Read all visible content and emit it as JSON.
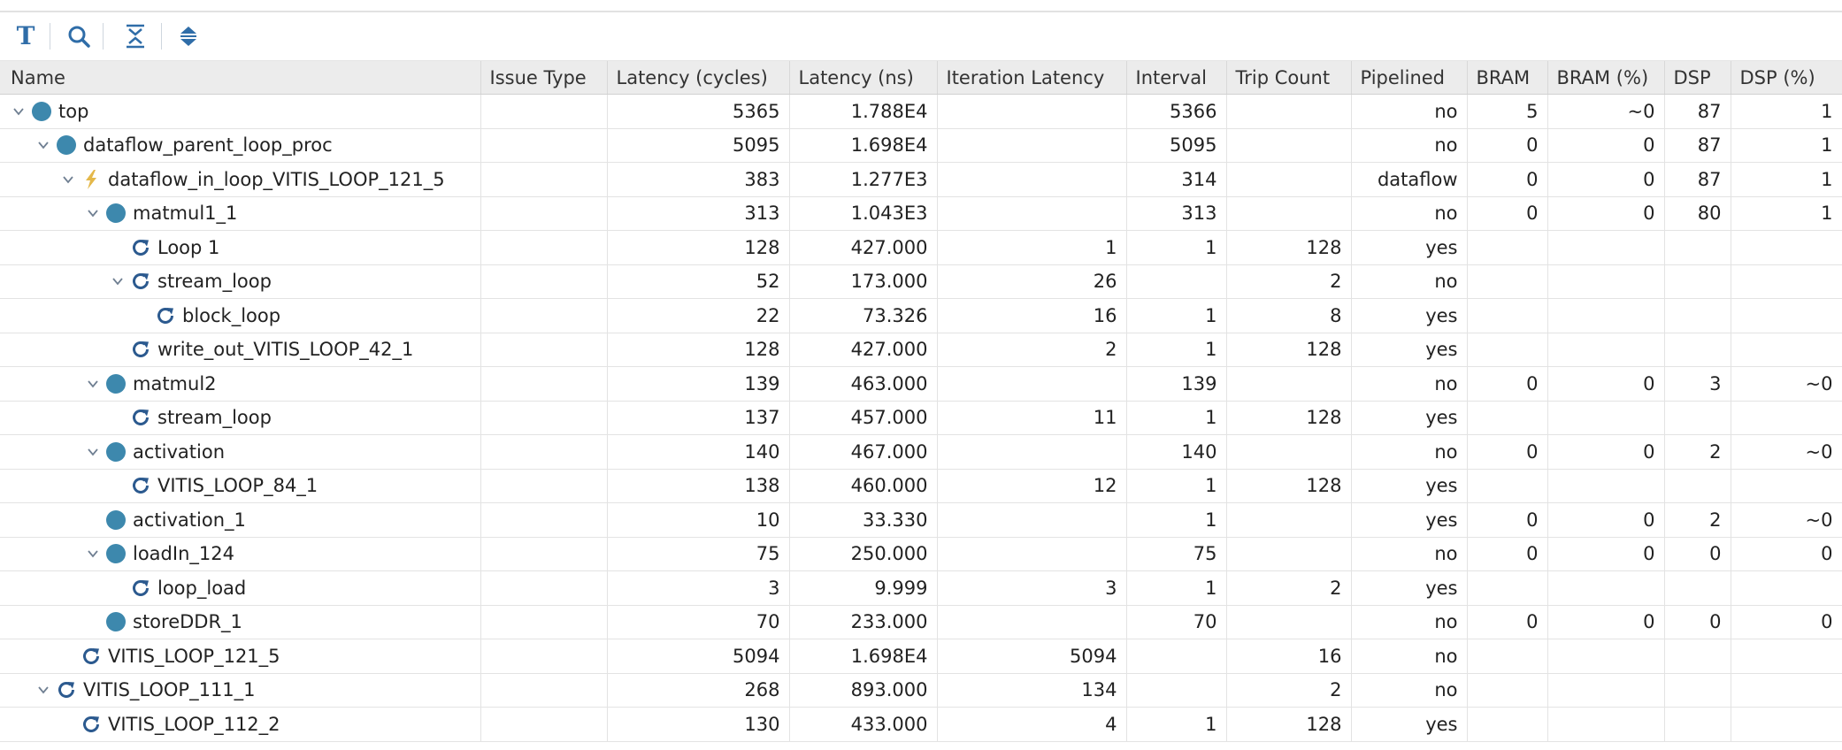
{
  "toolbar": {
    "buttons": [
      {
        "name": "text-format-button",
        "icon": "text-format-icon",
        "glyph": "T"
      },
      {
        "name": "search-button",
        "icon": "search-icon"
      },
      {
        "name": "collapse-all-button",
        "icon": "collapse-all-icon"
      },
      {
        "name": "expand-all-button",
        "icon": "expand-all-icon"
      }
    ]
  },
  "table": {
    "columns": [
      "Name",
      "Issue Type",
      "Latency (cycles)",
      "Latency (ns)",
      "Iteration Latency",
      "Interval",
      "Trip Count",
      "Pipelined",
      "BRAM",
      "BRAM (%)",
      "DSP",
      "DSP (%)"
    ],
    "rows": [
      {
        "name": "top",
        "level": 0,
        "icon": "function",
        "expanded": true,
        "issue": "",
        "lat_cycles": "5365",
        "lat_ns": "1.788E4",
        "iter_lat": "",
        "interval": "5366",
        "trip": "",
        "pipelined": "no",
        "bram": "5",
        "bram_pct": "~0",
        "dsp": "87",
        "dsp_pct": "1"
      },
      {
        "name": "dataflow_parent_loop_proc",
        "level": 1,
        "icon": "function",
        "expanded": true,
        "issue": "",
        "lat_cycles": "5095",
        "lat_ns": "1.698E4",
        "iter_lat": "",
        "interval": "5095",
        "trip": "",
        "pipelined": "no",
        "bram": "0",
        "bram_pct": "0",
        "dsp": "87",
        "dsp_pct": "1"
      },
      {
        "name": "dataflow_in_loop_VITIS_LOOP_121_5",
        "level": 2,
        "icon": "dataflow",
        "expanded": true,
        "issue": "",
        "lat_cycles": "383",
        "lat_ns": "1.277E3",
        "iter_lat": "",
        "interval": "314",
        "trip": "",
        "pipelined": "dataflow",
        "bram": "0",
        "bram_pct": "0",
        "dsp": "87",
        "dsp_pct": "1"
      },
      {
        "name": "matmul1_1",
        "level": 3,
        "icon": "function",
        "expanded": true,
        "issue": "",
        "lat_cycles": "313",
        "lat_ns": "1.043E3",
        "iter_lat": "",
        "interval": "313",
        "trip": "",
        "pipelined": "no",
        "bram": "0",
        "bram_pct": "0",
        "dsp": "80",
        "dsp_pct": "1"
      },
      {
        "name": "Loop 1",
        "level": 4,
        "icon": "loop",
        "expanded": null,
        "issue": "",
        "lat_cycles": "128",
        "lat_ns": "427.000",
        "iter_lat": "1",
        "interval": "1",
        "trip": "128",
        "pipelined": "yes",
        "bram": "",
        "bram_pct": "",
        "dsp": "",
        "dsp_pct": ""
      },
      {
        "name": "stream_loop",
        "level": 4,
        "icon": "loop",
        "expanded": true,
        "issue": "",
        "lat_cycles": "52",
        "lat_ns": "173.000",
        "iter_lat": "26",
        "interval": "",
        "trip": "2",
        "pipelined": "no",
        "bram": "",
        "bram_pct": "",
        "dsp": "",
        "dsp_pct": ""
      },
      {
        "name": "block_loop",
        "level": 5,
        "icon": "loop",
        "expanded": null,
        "issue": "",
        "lat_cycles": "22",
        "lat_ns": "73.326",
        "iter_lat": "16",
        "interval": "1",
        "trip": "8",
        "pipelined": "yes",
        "bram": "",
        "bram_pct": "",
        "dsp": "",
        "dsp_pct": ""
      },
      {
        "name": "write_out_VITIS_LOOP_42_1",
        "level": 4,
        "icon": "loop",
        "expanded": null,
        "issue": "",
        "lat_cycles": "128",
        "lat_ns": "427.000",
        "iter_lat": "2",
        "interval": "1",
        "trip": "128",
        "pipelined": "yes",
        "bram": "",
        "bram_pct": "",
        "dsp": "",
        "dsp_pct": ""
      },
      {
        "name": "matmul2",
        "level": 3,
        "icon": "function",
        "expanded": true,
        "issue": "",
        "lat_cycles": "139",
        "lat_ns": "463.000",
        "iter_lat": "",
        "interval": "139",
        "trip": "",
        "pipelined": "no",
        "bram": "0",
        "bram_pct": "0",
        "dsp": "3",
        "dsp_pct": "~0"
      },
      {
        "name": "stream_loop",
        "level": 4,
        "icon": "loop",
        "expanded": null,
        "issue": "",
        "lat_cycles": "137",
        "lat_ns": "457.000",
        "iter_lat": "11",
        "interval": "1",
        "trip": "128",
        "pipelined": "yes",
        "bram": "",
        "bram_pct": "",
        "dsp": "",
        "dsp_pct": ""
      },
      {
        "name": "activation",
        "level": 3,
        "icon": "function",
        "expanded": true,
        "issue": "",
        "lat_cycles": "140",
        "lat_ns": "467.000",
        "iter_lat": "",
        "interval": "140",
        "trip": "",
        "pipelined": "no",
        "bram": "0",
        "bram_pct": "0",
        "dsp": "2",
        "dsp_pct": "~0"
      },
      {
        "name": "VITIS_LOOP_84_1",
        "level": 4,
        "icon": "loop",
        "expanded": null,
        "issue": "",
        "lat_cycles": "138",
        "lat_ns": "460.000",
        "iter_lat": "12",
        "interval": "1",
        "trip": "128",
        "pipelined": "yes",
        "bram": "",
        "bram_pct": "",
        "dsp": "",
        "dsp_pct": ""
      },
      {
        "name": "activation_1",
        "level": 3,
        "icon": "function",
        "expanded": null,
        "issue": "",
        "lat_cycles": "10",
        "lat_ns": "33.330",
        "iter_lat": "",
        "interval": "1",
        "trip": "",
        "pipelined": "yes",
        "bram": "0",
        "bram_pct": "0",
        "dsp": "2",
        "dsp_pct": "~0"
      },
      {
        "name": "loadIn_124",
        "level": 3,
        "icon": "function",
        "expanded": true,
        "issue": "",
        "lat_cycles": "75",
        "lat_ns": "250.000",
        "iter_lat": "",
        "interval": "75",
        "trip": "",
        "pipelined": "no",
        "bram": "0",
        "bram_pct": "0",
        "dsp": "0",
        "dsp_pct": "0"
      },
      {
        "name": "loop_load",
        "level": 4,
        "icon": "loop",
        "expanded": null,
        "issue": "",
        "lat_cycles": "3",
        "lat_ns": "9.999",
        "iter_lat": "3",
        "interval": "1",
        "trip": "2",
        "pipelined": "yes",
        "bram": "",
        "bram_pct": "",
        "dsp": "",
        "dsp_pct": ""
      },
      {
        "name": "storeDDR_1",
        "level": 3,
        "icon": "function",
        "expanded": null,
        "issue": "",
        "lat_cycles": "70",
        "lat_ns": "233.000",
        "iter_lat": "",
        "interval": "70",
        "trip": "",
        "pipelined": "no",
        "bram": "0",
        "bram_pct": "0",
        "dsp": "0",
        "dsp_pct": "0"
      },
      {
        "name": "VITIS_LOOP_121_5",
        "level": 2,
        "icon": "loop",
        "expanded": null,
        "issue": "",
        "lat_cycles": "5094",
        "lat_ns": "1.698E4",
        "iter_lat": "5094",
        "interval": "",
        "trip": "16",
        "pipelined": "no",
        "bram": "",
        "bram_pct": "",
        "dsp": "",
        "dsp_pct": ""
      },
      {
        "name": "VITIS_LOOP_111_1",
        "level": 1,
        "icon": "loop",
        "expanded": true,
        "issue": "",
        "lat_cycles": "268",
        "lat_ns": "893.000",
        "iter_lat": "134",
        "interval": "",
        "trip": "2",
        "pipelined": "no",
        "bram": "",
        "bram_pct": "",
        "dsp": "",
        "dsp_pct": ""
      },
      {
        "name": "VITIS_LOOP_112_2",
        "level": 2,
        "icon": "loop",
        "expanded": null,
        "issue": "",
        "lat_cycles": "130",
        "lat_ns": "433.000",
        "iter_lat": "4",
        "interval": "1",
        "trip": "128",
        "pipelined": "yes",
        "bram": "",
        "bram_pct": "",
        "dsp": "",
        "dsp_pct": ""
      }
    ]
  },
  "colors": {
    "function_icon": "#3d88ad",
    "loop_icon": "#2c5a8f",
    "dataflow_icon": "#e4b84a",
    "chevron": "#6f7f92",
    "header_bg": "#ececec",
    "toolbar_icon": "#2f6da8"
  }
}
